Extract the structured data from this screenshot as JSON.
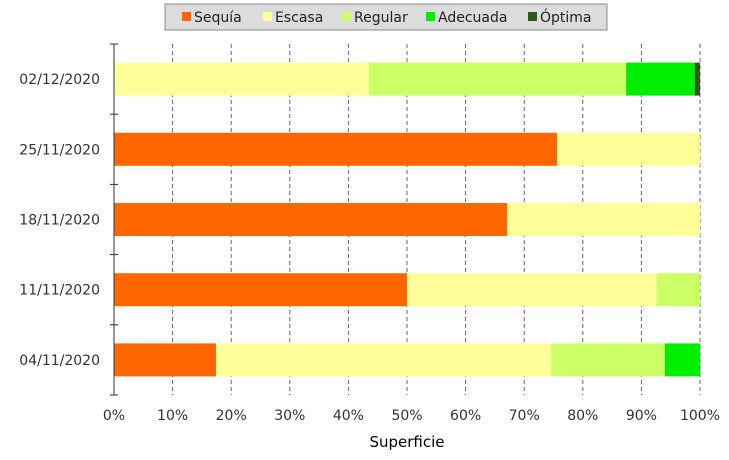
{
  "chart_data": {
    "type": "bar",
    "orientation": "horizontal",
    "stacked": true,
    "xlabel": "Superficie",
    "ylabel": "",
    "xlim": [
      0,
      100
    ],
    "x_ticks": [
      "0%",
      "10%",
      "20%",
      "30%",
      "40%",
      "50%",
      "60%",
      "70%",
      "80%",
      "90%",
      "100%"
    ],
    "grid": "vertical-dashed",
    "legend_position": "top",
    "categories": [
      "02/12/2020",
      "25/11/2020",
      "18/11/2020",
      "11/11/2020",
      "04/11/2020"
    ],
    "series": [
      {
        "name": "Sequía",
        "color": "#ff6600",
        "values": [
          0,
          75.6,
          67.1,
          50.0,
          17.4
        ]
      },
      {
        "name": "Escasa",
        "color": "#ffff99",
        "values": [
          43.5,
          24.4,
          32.9,
          42.6,
          57.2
        ]
      },
      {
        "name": "Regular",
        "color": "#ccff66",
        "values": [
          43.9,
          0,
          0,
          7.4,
          19.4
        ]
      },
      {
        "name": "Adecuada",
        "color": "#00ee00",
        "values": [
          11.7,
          0,
          0,
          0,
          6.0
        ]
      },
      {
        "name": "Óptima",
        "color": "#2d5a1b",
        "values": [
          0.9,
          0,
          0,
          0,
          0
        ]
      }
    ]
  }
}
